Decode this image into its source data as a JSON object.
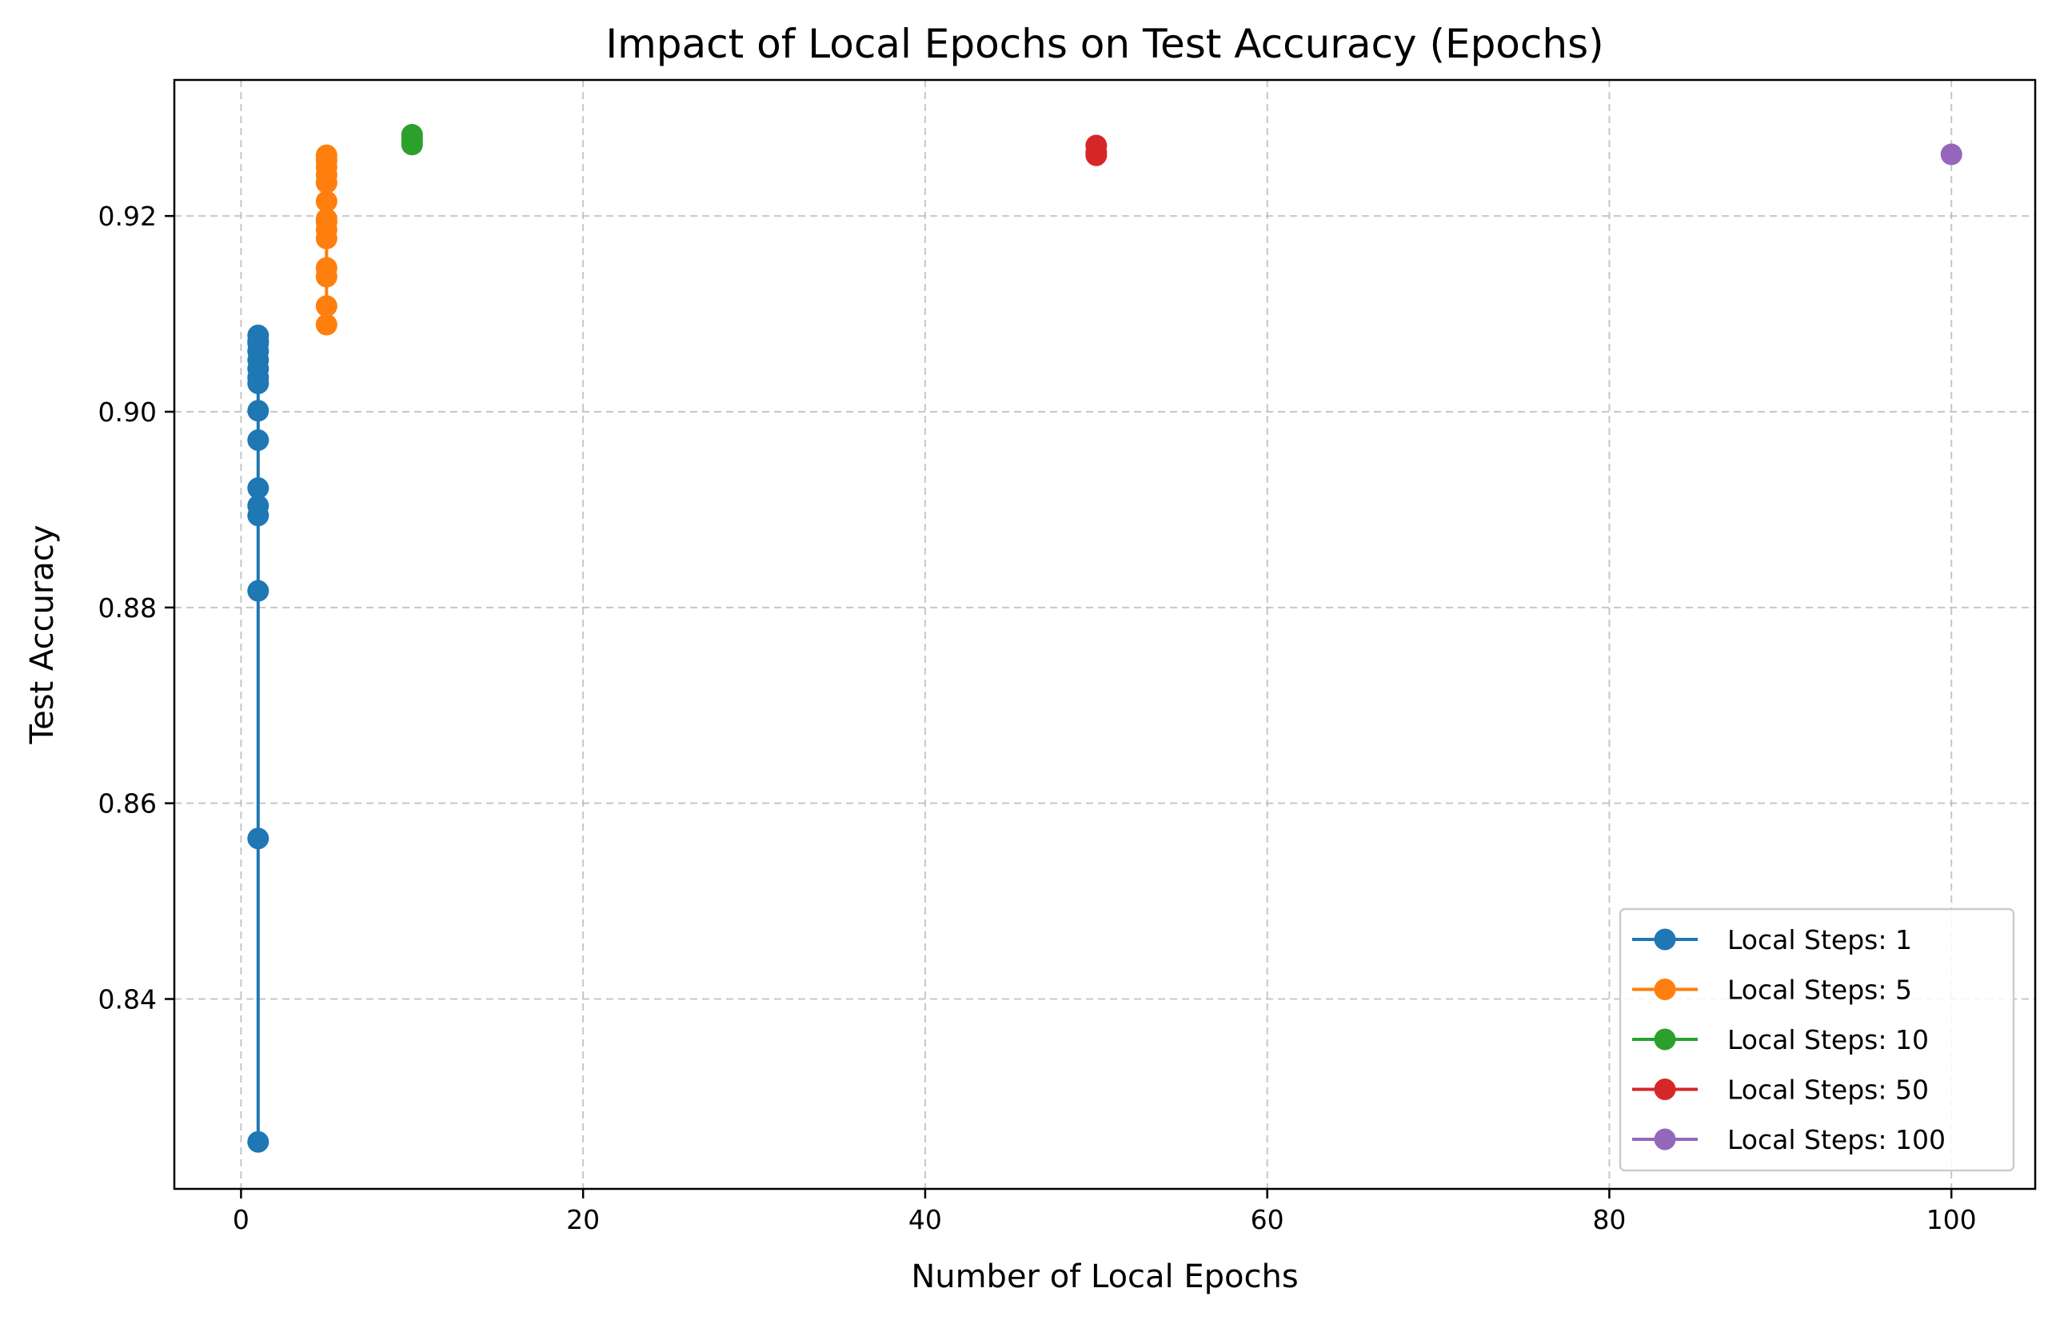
{
  "chart_data": {
    "type": "line",
    "title": "Impact of Local Epochs on Test Accuracy (Epochs)",
    "xlabel": "Number of Local Epochs",
    "ylabel": "Test Accuracy",
    "xlim": [
      -3.9,
      104.9
    ],
    "ylim": [
      0.8206,
      0.9339
    ],
    "xticks": [
      0,
      20,
      40,
      60,
      80,
      100
    ],
    "yticks": [
      0.84,
      0.86,
      0.88,
      0.9,
      0.92
    ],
    "xtick_labels": [
      "0",
      "20",
      "40",
      "60",
      "80",
      "100"
    ],
    "ytick_labels": [
      "0.84",
      "0.86",
      "0.88",
      "0.90",
      "0.92"
    ],
    "grid": true,
    "legend_position": "lower-right",
    "series": [
      {
        "name": "Local Steps: 1",
        "color": "#1f77b4",
        "x": [
          1,
          1,
          1,
          1,
          1,
          1,
          1,
          1,
          1,
          1,
          1,
          1,
          1,
          1,
          1,
          1
        ],
        "y": [
          0.8254,
          0.8564,
          0.8817,
          0.8894,
          0.8904,
          0.8922,
          0.8971,
          0.9001,
          0.9029,
          0.9035,
          0.9044,
          0.9053,
          0.9062,
          0.907,
          0.9072,
          0.9078
        ]
      },
      {
        "name": "Local Steps: 5",
        "color": "#ff7f0e",
        "x": [
          5,
          5,
          5,
          5,
          5,
          5,
          5,
          5,
          5,
          5,
          5,
          5,
          5,
          5
        ],
        "y": [
          0.9089,
          0.9108,
          0.9138,
          0.9147,
          0.9177,
          0.9186,
          0.9194,
          0.9197,
          0.9215,
          0.9234,
          0.9242,
          0.925,
          0.9257,
          0.9262
        ]
      },
      {
        "name": "Local Steps: 10",
        "color": "#2ca02c",
        "x": [
          10,
          10,
          10,
          10
        ],
        "y": [
          0.9273,
          0.9276,
          0.9279,
          0.9283
        ]
      },
      {
        "name": "Local Steps: 50",
        "color": "#d62728",
        "x": [
          50,
          50,
          50
        ],
        "y": [
          0.9262,
          0.9265,
          0.9272
        ]
      },
      {
        "name": "Local Steps: 100",
        "color": "#9467bd",
        "x": [
          100
        ],
        "y": [
          0.9263
        ]
      }
    ]
  }
}
